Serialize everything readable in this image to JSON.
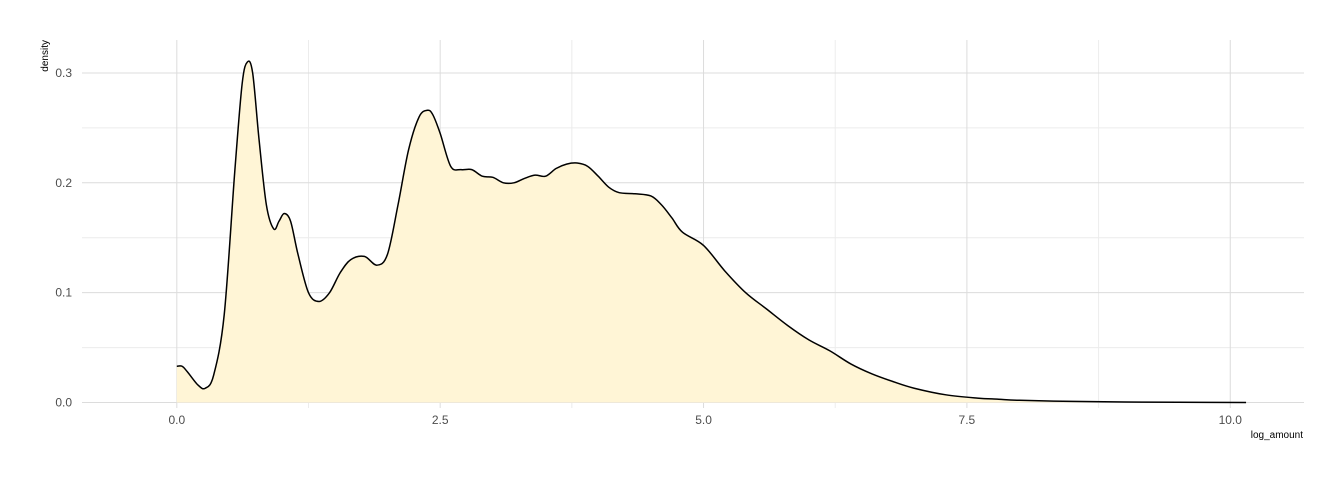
{
  "chart_data": {
    "type": "area",
    "title": "",
    "xlabel": "log_amount",
    "ylabel": "density",
    "xlim": [
      -0.9,
      10.7
    ],
    "ylim": [
      -0.005,
      0.33
    ],
    "x_ticks": [
      0.0,
      2.5,
      5.0,
      7.5,
      10.0
    ],
    "x_tick_labels": [
      "0.0",
      "2.5",
      "5.0",
      "7.5",
      "10.0"
    ],
    "x_minor_ticks": [
      1.25,
      3.75,
      6.25,
      8.75
    ],
    "y_ticks": [
      0.0,
      0.1,
      0.2,
      0.3
    ],
    "y_tick_labels": [
      "0.0",
      "0.1",
      "0.2",
      "0.3"
    ],
    "y_minor_ticks": [
      0.05,
      0.15,
      0.25
    ],
    "grid": true,
    "legend": "none",
    "fill_color": "#fff5d6",
    "line_color": "#000000",
    "series": [
      {
        "x": [
          0.0,
          0.05,
          0.1,
          0.2,
          0.27,
          0.35,
          0.45,
          0.55,
          0.62,
          0.67,
          0.72,
          0.78,
          0.85,
          0.92,
          0.97,
          1.02,
          1.08,
          1.15,
          1.25,
          1.35,
          1.45,
          1.55,
          1.65,
          1.78,
          1.9,
          2.0,
          2.1,
          2.2,
          2.3,
          2.38,
          2.43,
          2.5,
          2.6,
          2.7,
          2.8,
          2.9,
          3.0,
          3.1,
          3.2,
          3.3,
          3.4,
          3.5,
          3.6,
          3.7,
          3.8,
          3.9,
          4.0,
          4.1,
          4.2,
          4.35,
          4.5,
          4.6,
          4.7,
          4.8,
          5.0,
          5.2,
          5.4,
          5.6,
          5.8,
          6.0,
          6.2,
          6.4,
          6.6,
          6.8,
          7.0,
          7.3,
          7.6,
          7.8,
          8.0,
          8.5,
          9.0,
          9.5,
          10.15
        ],
        "y": [
          0.033,
          0.033,
          0.028,
          0.016,
          0.013,
          0.025,
          0.08,
          0.21,
          0.29,
          0.31,
          0.3,
          0.24,
          0.18,
          0.158,
          0.165,
          0.172,
          0.165,
          0.135,
          0.1,
          0.092,
          0.1,
          0.118,
          0.13,
          0.133,
          0.125,
          0.135,
          0.18,
          0.23,
          0.26,
          0.266,
          0.262,
          0.245,
          0.215,
          0.212,
          0.212,
          0.206,
          0.205,
          0.2,
          0.2,
          0.204,
          0.207,
          0.206,
          0.213,
          0.217,
          0.218,
          0.215,
          0.206,
          0.196,
          0.191,
          0.19,
          0.188,
          0.18,
          0.168,
          0.155,
          0.143,
          0.12,
          0.1,
          0.085,
          0.07,
          0.057,
          0.047,
          0.035,
          0.026,
          0.019,
          0.013,
          0.007,
          0.004,
          0.003,
          0.002,
          0.001,
          0.0005,
          0.0002,
          0.0
        ]
      }
    ]
  }
}
